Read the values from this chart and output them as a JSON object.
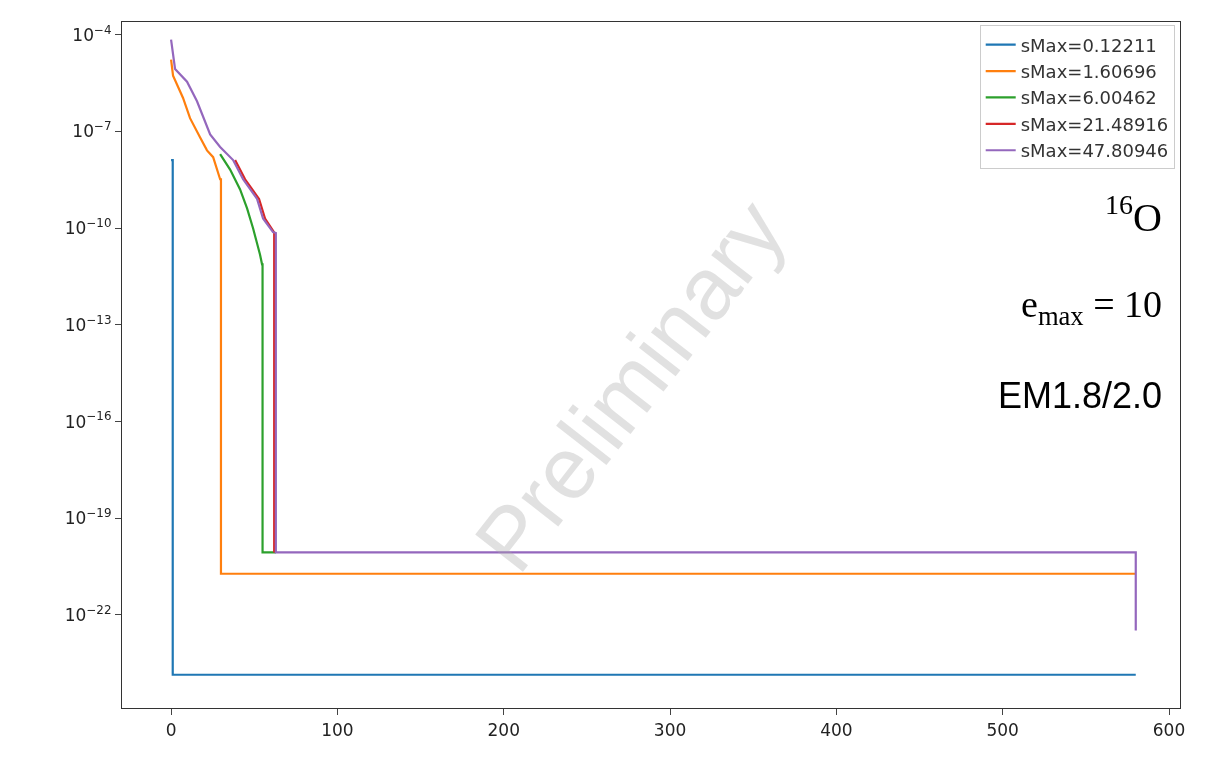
{
  "chart_data": {
    "type": "line",
    "legend": "top right",
    "xlim": [
      -29.5,
      606.6
    ],
    "xticks": [
      0,
      100,
      200,
      300,
      400,
      500,
      600
    ],
    "log": "y",
    "ylim": [
      1.3e-25,
      0.00025
    ],
    "yticks": [
      {
        "value": 0.0001,
        "label": "10$^{−4}$"
      },
      {
        "value": 1e-07,
        "label": "10$^{−7}$"
      },
      {
        "value": 1e-10,
        "label": "10$^{−10}$"
      },
      {
        "value": 1e-13,
        "label": "10$^{−13}$"
      },
      {
        "value": 1e-16,
        "label": "10$^{−16}$"
      },
      {
        "value": 1e-19,
        "label": "10$^{−19}$"
      },
      {
        "value": 1e-22,
        "label": "10$^{−22}$"
      }
    ],
    "series": [
      {
        "name": "sMax=0.12211",
        "color": "#1f77b4",
        "x": [
          0,
          1,
          1,
          580
        ],
        "values": [
          1.3e-08,
          1.3e-08,
          1.4e-24,
          1.4e-24
        ]
      },
      {
        "name": "sMax=1.60696",
        "color": "#ff7f0e",
        "x": [
          0,
          1.2,
          7.2,
          11.4,
          17.4,
          21.6,
          25.3,
          29.5,
          30,
          30,
          580
        ],
        "values": [
          1.7e-05,
          5.4e-06,
          1.1e-06,
          2.6e-07,
          6.6e-08,
          2.6e-08,
          1.6e-08,
          3.3e-09,
          3.3e-09,
          1.9e-21,
          1.9e-21
        ]
      },
      {
        "name": "sMax=6.00462",
        "color": "#2ca02c",
        "x": [
          29.5,
          35.5,
          41.5,
          45.7,
          49.3,
          53.5,
          54.7,
          55,
          55,
          63
        ],
        "values": [
          2e-08,
          6.6e-09,
          1.6e-09,
          4.1e-10,
          1e-10,
          1.5e-11,
          7.6e-12,
          7.6e-12,
          8.7e-21,
          8.7e-21
        ]
      },
      {
        "name": "sMax=21.48916",
        "color": "#d62728",
        "x": [
          38.5,
          44.5,
          52.9,
          56.5,
          61.8,
          62,
          62
        ],
        "values": [
          1.3e-08,
          3.3e-09,
          8.1e-10,
          2e-10,
          7.6e-11,
          7.1e-11,
          8.7e-21
        ]
      },
      {
        "name": "sMax=47.80946",
        "color": "#9467bd",
        "x": [
          0,
          2.4,
          9.6,
          15.6,
          23.5,
          29.5,
          37.3,
          43.3,
          51.7,
          55.3,
          61.3,
          63,
          63,
          580,
          580
        ],
        "values": [
          7.1e-05,
          8.7e-06,
          3.5e-06,
          8.7e-07,
          8.1e-08,
          3.3e-08,
          1.3e-08,
          3.3e-09,
          8.1e-10,
          2e-10,
          7.6e-11,
          7.1e-11,
          8.7e-21,
          8.7e-21,
          3.3e-23
        ]
      }
    ],
    "annotations": [
      "$^{16}$O",
      "e$_{max}$ = 10",
      "EM1.8/2.0",
      "Preliminary"
    ]
  }
}
